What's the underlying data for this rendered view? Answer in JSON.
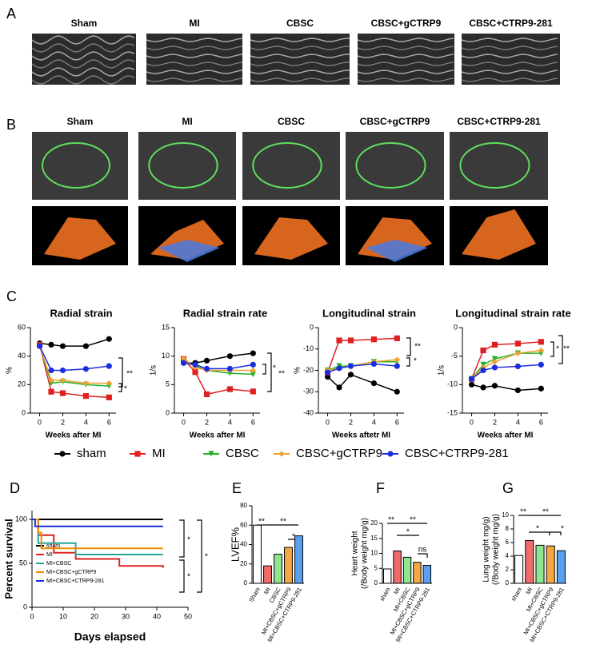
{
  "panel_labels": [
    "A",
    "B",
    "C",
    "D",
    "E",
    "F",
    "G"
  ],
  "echo_images": {
    "m_mode_titles": [
      "Sham",
      "MI",
      "CBSC",
      "CBSC+gCTRP9",
      "CBSC+CTRP9-281"
    ],
    "strain_titles": [
      "Sham",
      "MI",
      "CBSC",
      "CBSC+gCTRP9",
      "CBSC+CTRP9-281"
    ]
  },
  "chart_data": [
    {
      "type": "line",
      "title": "Radial strain",
      "x_label": "Weeks after MI",
      "y_label": "%",
      "x": [
        0,
        1,
        2,
        4,
        6
      ],
      "xlim": [
        -0.8,
        6.6
      ],
      "xticks": [
        0,
        2,
        4,
        6
      ],
      "ylim": [
        0,
        60
      ],
      "yticks": [
        0,
        20,
        40,
        60
      ],
      "series": [
        {
          "name": "sham",
          "color": "#000000",
          "marker": "circle",
          "values": [
            49,
            48,
            47,
            47,
            52
          ]
        },
        {
          "name": "MI",
          "color": "#e02020",
          "marker": "square",
          "values": [
            48,
            15,
            14,
            12,
            11
          ]
        },
        {
          "name": "CBSC",
          "color": "#20b020",
          "marker": "triangle-down",
          "values": [
            47,
            21,
            22,
            20,
            19
          ]
        },
        {
          "name": "CBSC+gCTRP9",
          "color": "#f0a030",
          "marker": "diamond",
          "values": [
            47,
            23,
            23,
            21,
            21
          ]
        },
        {
          "name": "CBSC+CTRP9-281",
          "color": "#1a2ee0",
          "marker": "circle",
          "values": [
            47,
            30,
            30,
            31,
            33
          ]
        }
      ],
      "annotations": [
        "**",
        "*"
      ]
    },
    {
      "type": "line",
      "title": "Radial strain rate",
      "x_label": "Weeks after MI",
      "y_label": "1/s",
      "x": [
        0,
        1,
        2,
        4,
        6
      ],
      "xlim": [
        -0.8,
        6.6
      ],
      "xticks": [
        0,
        2,
        4,
        6
      ],
      "ylim": [
        0,
        15
      ],
      "yticks": [
        0,
        5,
        10,
        15
      ],
      "series": [
        {
          "color": "#000000",
          "marker": "circle",
          "values": [
            8.8,
            8.8,
            9.2,
            10,
            10.5
          ]
        },
        {
          "color": "#e02020",
          "marker": "square",
          "values": [
            9.5,
            7.2,
            3.3,
            4.2,
            3.8
          ]
        },
        {
          "color": "#20b020",
          "marker": "triangle-down",
          "values": [
            9,
            8.3,
            7.5,
            7,
            6.8
          ]
        },
        {
          "color": "#f0a030",
          "marker": "diamond",
          "values": [
            9.6,
            8,
            7.5,
            7.5,
            7.5
          ]
        },
        {
          "color": "#1a2ee0",
          "marker": "circle",
          "values": [
            8.8,
            8.5,
            7.8,
            7.8,
            8.5
          ]
        }
      ],
      "annotations": [
        "*",
        "**"
      ]
    },
    {
      "type": "line",
      "title": "Longitudinal strain",
      "x_label": "Weeks aftetr MI",
      "y_label": "%",
      "x": [
        0,
        1,
        2,
        4,
        6
      ],
      "xlim": [
        -0.8,
        6.6
      ],
      "xticks": [
        0,
        2,
        4,
        6
      ],
      "ylim": [
        -40,
        0
      ],
      "yticks": [
        -40,
        -30,
        -20,
        -10,
        0
      ],
      "series": [
        {
          "color": "#000000",
          "marker": "circle",
          "values": [
            -23,
            -28,
            -22,
            -26,
            -30
          ]
        },
        {
          "color": "#e02020",
          "marker": "square",
          "values": [
            -21,
            -6,
            -6,
            -5.5,
            -5
          ]
        },
        {
          "color": "#20b020",
          "marker": "triangle-down",
          "values": [
            -20,
            -18,
            -18,
            -16,
            -16
          ]
        },
        {
          "color": "#f0a030",
          "marker": "diamond",
          "values": [
            -20,
            -19,
            -18,
            -16,
            -15
          ]
        },
        {
          "color": "#1a2ee0",
          "marker": "circle",
          "values": [
            -21,
            -19,
            -18,
            -17,
            -18
          ]
        }
      ],
      "annotations": [
        "**",
        "*"
      ]
    },
    {
      "type": "line",
      "title": "Longitudinal strain rate",
      "x_label": "Weeks after MI",
      "y_label": "1/s",
      "x": [
        0,
        1,
        2,
        4,
        6
      ],
      "xlim": [
        -0.8,
        6.6
      ],
      "xticks": [
        0,
        2,
        4,
        6
      ],
      "ylim": [
        -15,
        0
      ],
      "yticks": [
        -15,
        -10,
        -5,
        0
      ],
      "series": [
        {
          "color": "#000000",
          "marker": "circle",
          "values": [
            -10,
            -10.5,
            -10.2,
            -11,
            -10.7
          ]
        },
        {
          "color": "#e02020",
          "marker": "square",
          "values": [
            -9,
            -4,
            -3,
            -2.8,
            -2.5
          ]
        },
        {
          "color": "#20b020",
          "marker": "triangle-down",
          "values": [
            -9,
            -6.5,
            -5.5,
            -4.5,
            -4.5
          ]
        },
        {
          "color": "#f0a030",
          "marker": "diamond",
          "values": [
            -9,
            -7,
            -6,
            -4.5,
            -4
          ]
        },
        {
          "color": "#1a2ee0",
          "marker": "circle",
          "values": [
            -9,
            -7.5,
            -7,
            -6.8,
            -6.5
          ]
        }
      ],
      "annotations": [
        "*",
        "**"
      ]
    },
    {
      "type": "step",
      "x_label": "Days elapsed",
      "y_label": "Percent survival",
      "xlim": [
        0,
        50
      ],
      "xticks": [
        0,
        10,
        20,
        30,
        40,
        50
      ],
      "ylim": [
        0,
        110
      ],
      "yticks": [
        0,
        50,
        100
      ],
      "series": [
        {
          "name": "sham",
          "color": "#000000",
          "x": [
            0,
            42
          ],
          "values": [
            100,
            100
          ]
        },
        {
          "name": "MI",
          "color": "#e02020",
          "x": [
            0,
            2,
            7,
            14,
            28,
            42
          ],
          "values": [
            100,
            82,
            62,
            55,
            47,
            45
          ]
        },
        {
          "name": "MI+CBSC",
          "color": "#26a69a",
          "x": [
            0,
            2,
            14,
            42
          ],
          "values": [
            100,
            73,
            60,
            60
          ]
        },
        {
          "name": "MI+CBSC+gCTRP9",
          "color": "#f08a00",
          "x": [
            0,
            2,
            3,
            42
          ],
          "values": [
            100,
            85,
            67,
            67
          ]
        },
        {
          "name": "MI+CBSC+CTRP9-281",
          "color": "#1a2ee0",
          "x": [
            0,
            1,
            42
          ],
          "values": [
            100,
            92,
            92
          ]
        }
      ],
      "annotations": [
        "*",
        "*",
        "*"
      ]
    },
    {
      "type": "bar",
      "y_label": "LVEF%",
      "categories": [
        "Sham",
        "MI",
        "CBSC",
        "MI+CBSC+gCTRP9",
        "MI+CBSC+CTRP9-281"
      ],
      "values": [
        60,
        18,
        30,
        37,
        49
      ],
      "colors": [
        "#ffffff",
        "#f26b6b",
        "#8ee68e",
        "#f5a742",
        "#5aa0f0"
      ],
      "ylim": [
        0,
        80
      ],
      "yticks": [
        0,
        20,
        40,
        60,
        80
      ],
      "annotations": [
        "**",
        "**",
        "*"
      ]
    },
    {
      "type": "bar",
      "y_label": [
        "Heart weight",
        "(/Body weight mg/g)"
      ],
      "categories": [
        "sham",
        "MI",
        "MI+CBSC",
        "MI+CBSC+gCTRP9",
        "MI+CBSC+CTRP9-281"
      ],
      "values": [
        4.8,
        10.8,
        8.7,
        7.0,
        6.0
      ],
      "colors": [
        "#ffffff",
        "#f26b6b",
        "#8ee68e",
        "#f5a742",
        "#5aa0f0"
      ],
      "ylim": [
        0,
        20
      ],
      "yticks": [
        0,
        5,
        10,
        15,
        20
      ],
      "annotations": [
        "**",
        "**",
        "*",
        "ns"
      ]
    },
    {
      "type": "bar",
      "y_label": [
        "Lung weight mg/g)",
        "(/Body weight mg/g)"
      ],
      "categories": [
        "sham",
        "MI",
        "MI+CBSC",
        "MI+CBSC+gCTRP9",
        "MI+CBSC+CTRP9-281"
      ],
      "values": [
        4.1,
        6.3,
        5.6,
        5.5,
        4.8
      ],
      "colors": [
        "#ffffff",
        "#f26b6b",
        "#8ee68e",
        "#f5a742",
        "#5aa0f0"
      ],
      "ylim": [
        0,
        10
      ],
      "yticks": [
        0,
        2,
        4,
        6,
        8,
        10
      ],
      "annotations": [
        "**",
        "**",
        "*",
        "*"
      ]
    }
  ]
}
